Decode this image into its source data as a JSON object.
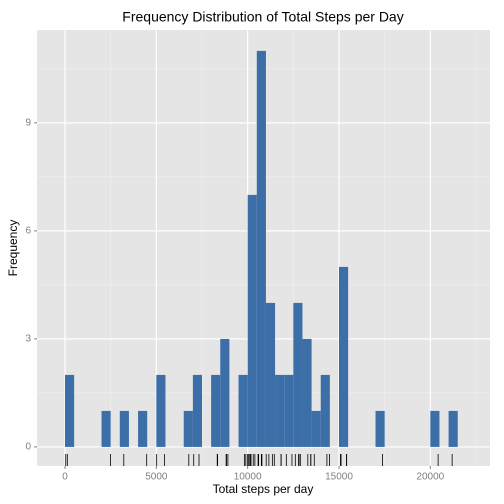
{
  "chart_data": {
    "type": "histogram",
    "title": "Frequency Distribution of Total Steps per Day",
    "x_label": "Total steps per day",
    "y_label": "Frequency",
    "bins": [
      0,
      500,
      1000,
      1500,
      2000,
      2500,
      3000,
      3500,
      4000,
      4500,
      5000,
      5500,
      6000,
      6500,
      7000,
      7500,
      8000,
      8500,
      9000,
      9500,
      10000,
      10500,
      11000,
      11500,
      12000,
      12500,
      13000,
      13500,
      14000,
      14500,
      15000,
      15500,
      16000,
      16500,
      17000,
      17500,
      18000,
      18500,
      19000,
      19500,
      20000,
      20500,
      21000,
      21500
    ],
    "counts": [
      2,
      0,
      0,
      0,
      1,
      0,
      1,
      0,
      1,
      0,
      2,
      0,
      0,
      1,
      2,
      0,
      2,
      3,
      0,
      2,
      7,
      11,
      4,
      2,
      2,
      4,
      3,
      1,
      2,
      0,
      5,
      0,
      0,
      0,
      1,
      0,
      0,
      0,
      0,
      0,
      1,
      0,
      1
    ],
    "rug": [
      41,
      126,
      2492,
      3219,
      4472,
      5018,
      5441,
      6778,
      7047,
      7336,
      8334,
      8355,
      8821,
      8841,
      8918,
      9819,
      9900,
      10000,
      10056,
      10119,
      10139,
      10183,
      10304,
      10395,
      10571,
      10600,
      10765,
      10766,
      10766,
      10766,
      10766,
      10766,
      10766,
      10766,
      10766,
      11015,
      11162,
      11352,
      11458,
      11829,
      11834,
      12116,
      12426,
      12608,
      12787,
      12811,
      12883,
      13294,
      13452,
      13460,
      13646,
      14339,
      14478,
      15084,
      15098,
      15110,
      15414,
      15420,
      17382,
      20427,
      21194
    ],
    "color": "#3c6ea8",
    "xlim": [
      -1533,
      23267
    ],
    "ylim": [
      -0.53,
      11.58
    ],
    "xticks": [
      0,
      5000,
      10000,
      15000,
      20000
    ],
    "yticks": [
      0,
      3,
      6,
      9
    ],
    "grid": true
  }
}
